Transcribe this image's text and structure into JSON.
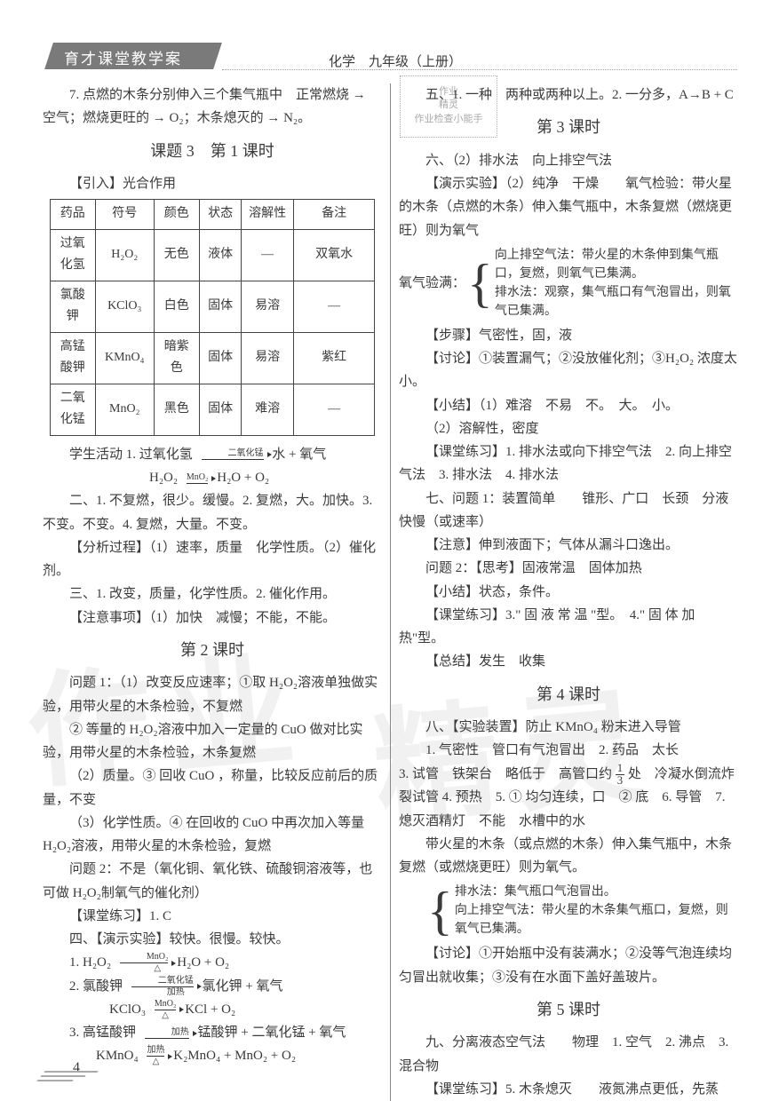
{
  "header": {
    "brand": "育才课堂教学案",
    "subject": "化学　九年级（上册）"
  },
  "stamp": {
    "l1": "作业",
    "l2": "精灵",
    "l3": "作业检查小能手"
  },
  "watermark": {
    "w1": "作业",
    "w2": "精灵"
  },
  "left": {
    "para7": "7. 点燃的木条分别伸入三个集气瓶中　正常燃烧 → 空气；燃烧更旺的 → O₂；木条熄灭的 → N₂。",
    "title3_1": "课题 3　第 1 课时",
    "intro": "【引入】光合作用",
    "table": {
      "headers": [
        "药品",
        "符号",
        "颜色",
        "状态",
        "溶解性",
        "备注"
      ],
      "rows": [
        [
          "过氧化氢",
          "H₂O₂",
          "无色",
          "液体",
          "—",
          "双氧水"
        ],
        [
          "氯酸钾",
          "KClO₃",
          "白色",
          "固体",
          "易溶",
          "—"
        ],
        [
          "高锰酸钾",
          "KMnO₄",
          "暗紫色",
          "固体",
          "易溶",
          "紫红"
        ],
        [
          "二氧化锰",
          "MnO₂",
          "黑色",
          "固体",
          "难溶",
          "—"
        ]
      ],
      "col_widths": [
        "14%",
        "18%",
        "14%",
        "13%",
        "16%",
        "25%"
      ]
    },
    "act1_pre": "学生活动 1. 过氧化氢",
    "act1_cond": "二氧化锰",
    "act1_post": "水 + 氧气",
    "eq1_l": "H₂O₂",
    "eq1_cond": "MnO₂",
    "eq1_r": "H₂O + O₂",
    "p_er": "二、1. 不复燃，很少。缓慢。2. 复燃，大。加快。3. 不变。不变。4. 复燃，大量。不变。",
    "p_fx": "【分析过程】（1）速率，质量　化学性质。（2）催化剂。",
    "p_san": "三、1. 改变，质量，化学性质。2. 催化作用。",
    "p_zy": "【注意事项】（1）加快　减慢；不能，不能。",
    "title2": "第 2 课时",
    "q1a": "问题 1：（1）改变反应速率；①取 H₂O₂溶液单独做实验，用带火星的木条检验，不复燃",
    "q1b": "② 等量的 H₂O₂溶液中加入一定量的 CuO 做对比实验，用带火星的木条检验，木条复燃",
    "q1c": "（2）质量。③ 回收 CuO ，称量，比较反应前后的质量，不变",
    "q1d": "（3）化学性质。④ 在回收的 CuO 中再次加入等量 H₂O₂溶液，用带火星的木条检验，复燃",
    "q2": "问题 2：不是（氧化铜、氧化铁、硫酸铜溶液等，也可做 H₂O₂制氧气的催化剂）",
    "kt1": "【课堂练习】1. C",
    "demo4": "四、【演示实验】较快。很慢。较快。",
    "eq_a_l": "1. H₂O₂",
    "eq_a_cond": "MnO₂",
    "eq_a_r": "H₂O + O₂",
    "eq_b_pre": "2. 氯酸钾",
    "eq_b_top": "二氧化锰",
    "eq_b_bot": "加热",
    "eq_b_post": "氯化钾 + 氧气",
    "eq_b2_l": "KClO₃",
    "eq_b2_top": "MnO₂",
    "eq_b2_bot": "△",
    "eq_b2_r": "KCl + O₂",
    "eq_c_pre": "3. 高锰酸钾",
    "eq_c_top": "加热",
    "eq_c_post": "锰酸钾 + 二氧化锰 + 氧气",
    "eq_c2_l": "KMnO₄",
    "eq_c2_top": "加热",
    "eq_c2_r": "K₂MnO₄ + MnO₂ + O₂"
  },
  "right": {
    "wu": "五、1. 一种　两种或两种以上。2. 一分多，A→B + C",
    "title3": "第 3 课时",
    "liu": "六、（2）排水法　向上排空气法",
    "demo2": "【演示实验】（2）纯净　干燥　　氧气检验：带火星的木条（点燃的木条）伸入集气瓶中，木条复燃（燃烧更旺）则为氧气",
    "brace_label": "氧气验满：",
    "brace_a": "向上排空气法：带火星的木条伸到集气瓶口，复燃，则氧气已集满。",
    "brace_b": "排水法：观察，集气瓶口有气泡冒出，则氧气已集满。",
    "buzhou": "【步骤】气密性，固，液",
    "taolun": "【讨论】①装置漏气；②没放催化剂；③H₂O₂ 浓度太小。",
    "xiaojie1": "【小结】（1）难溶　不易　不。　大。　小。",
    "xiaojie2": "（2）溶解性，密度",
    "kt2": "【课堂练习】1. 排水法或向下排空气法　2. 向上排空气法　3. 排水法　4. 排水法",
    "qi": "七、问题 1：装置简单　　锥形、广口　长颈　分液　快慢（或速率）",
    "zhuyi": "【注意】伸到液面下；气体从漏斗口逸出。",
    "wenti2": "问题 2：【思考】固液常温　固体加热",
    "xiaojie3": "【小结】状态，条件。",
    "kt3": "【课堂练习】3.\" 固 液 常 温 \"型。　4.\" 固 体 加热\"型。",
    "zongjie": "【总结】发生　收集",
    "title4": "第 4 课时",
    "ba": "八、【实验装置】防止 KMnO₄ 粉末进入导管",
    "r1": "1. 气密性　管口有气泡冒出　2. 药品　太长",
    "r3a": "3. 试管　铁架台　略低于　高管口约",
    "frac_n": "1",
    "frac_d": "3",
    "r3b": "处　冷凝水倒流炸裂试管 4. 预热　5. ① 均匀连续，口　② 底　6. 导管　7. 熄灭酒精灯　不能　水槽中的水",
    "r_extra": "带火星的木条（或点燃的木条）伸入集气瓶中，木条复燃（或燃烧更旺）则为氧气。",
    "brace2_a": "排水法：集气瓶口气泡冒出。",
    "brace2_b": "向上排空气法：带火星的木条集气瓶口，复燃，则氧气已集满。",
    "taolun2": "【讨论】①开始瓶中没有装满水；②没等气泡连续均匀冒出就收集；③没有在水面下盖好盖玻片。",
    "title5": "第 5 课时",
    "jiu": "九、分离液态空气法　　物理　1. 空气　2. 沸点　3. 混合物",
    "kt5": "【课堂练习】5. 木条熄灭　　液氮沸点更低，先蒸"
  },
  "page_number": "4"
}
